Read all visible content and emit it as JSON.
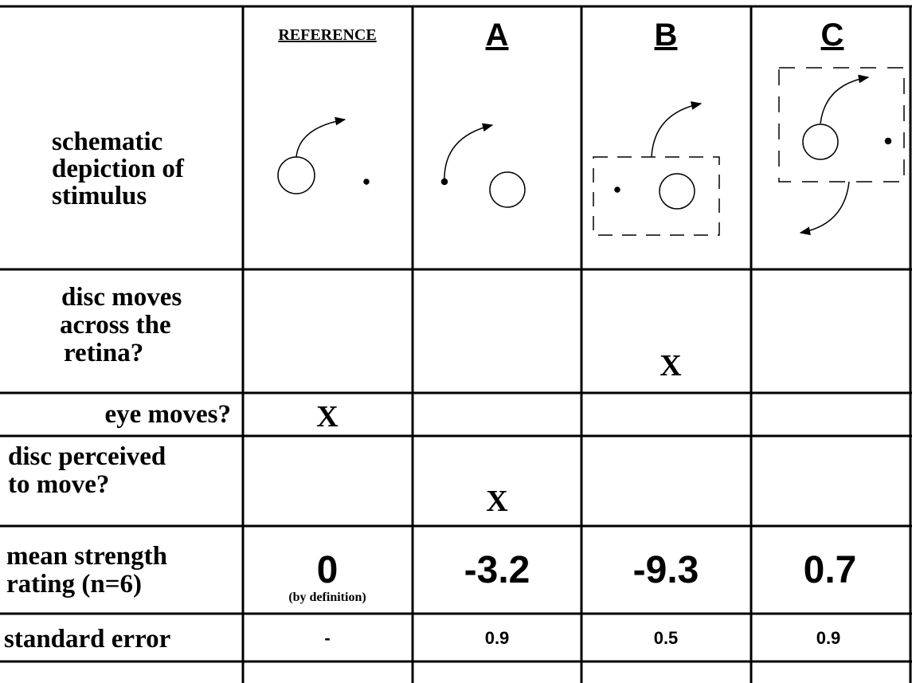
{
  "table": {
    "header": [
      "REFERENCE",
      "A",
      "B",
      "C"
    ],
    "rows": [
      {
        "label": [
          "schematic",
          "depiction of",
          "stimulus"
        ]
      },
      {
        "label": [
          "disc moves",
          "across the",
          "retina?"
        ],
        "cells": [
          null,
          null,
          "X",
          null
        ]
      },
      {
        "label": [
          "eye moves?"
        ],
        "cells": [
          "X",
          null,
          null,
          null
        ]
      },
      {
        "label": [
          "disc perceived",
          "to move?"
        ],
        "cells": [
          null,
          "X",
          null,
          null
        ]
      },
      {
        "label": [
          "mean strength",
          "rating (n=6)"
        ],
        "cells": [
          "0",
          "-3.2",
          "-9.3",
          "0.7"
        ],
        "note": "(by definition)"
      },
      {
        "label": [
          "standard error"
        ],
        "cells": [
          "-",
          "0.9",
          "0.5",
          "0.9"
        ]
      }
    ]
  }
}
